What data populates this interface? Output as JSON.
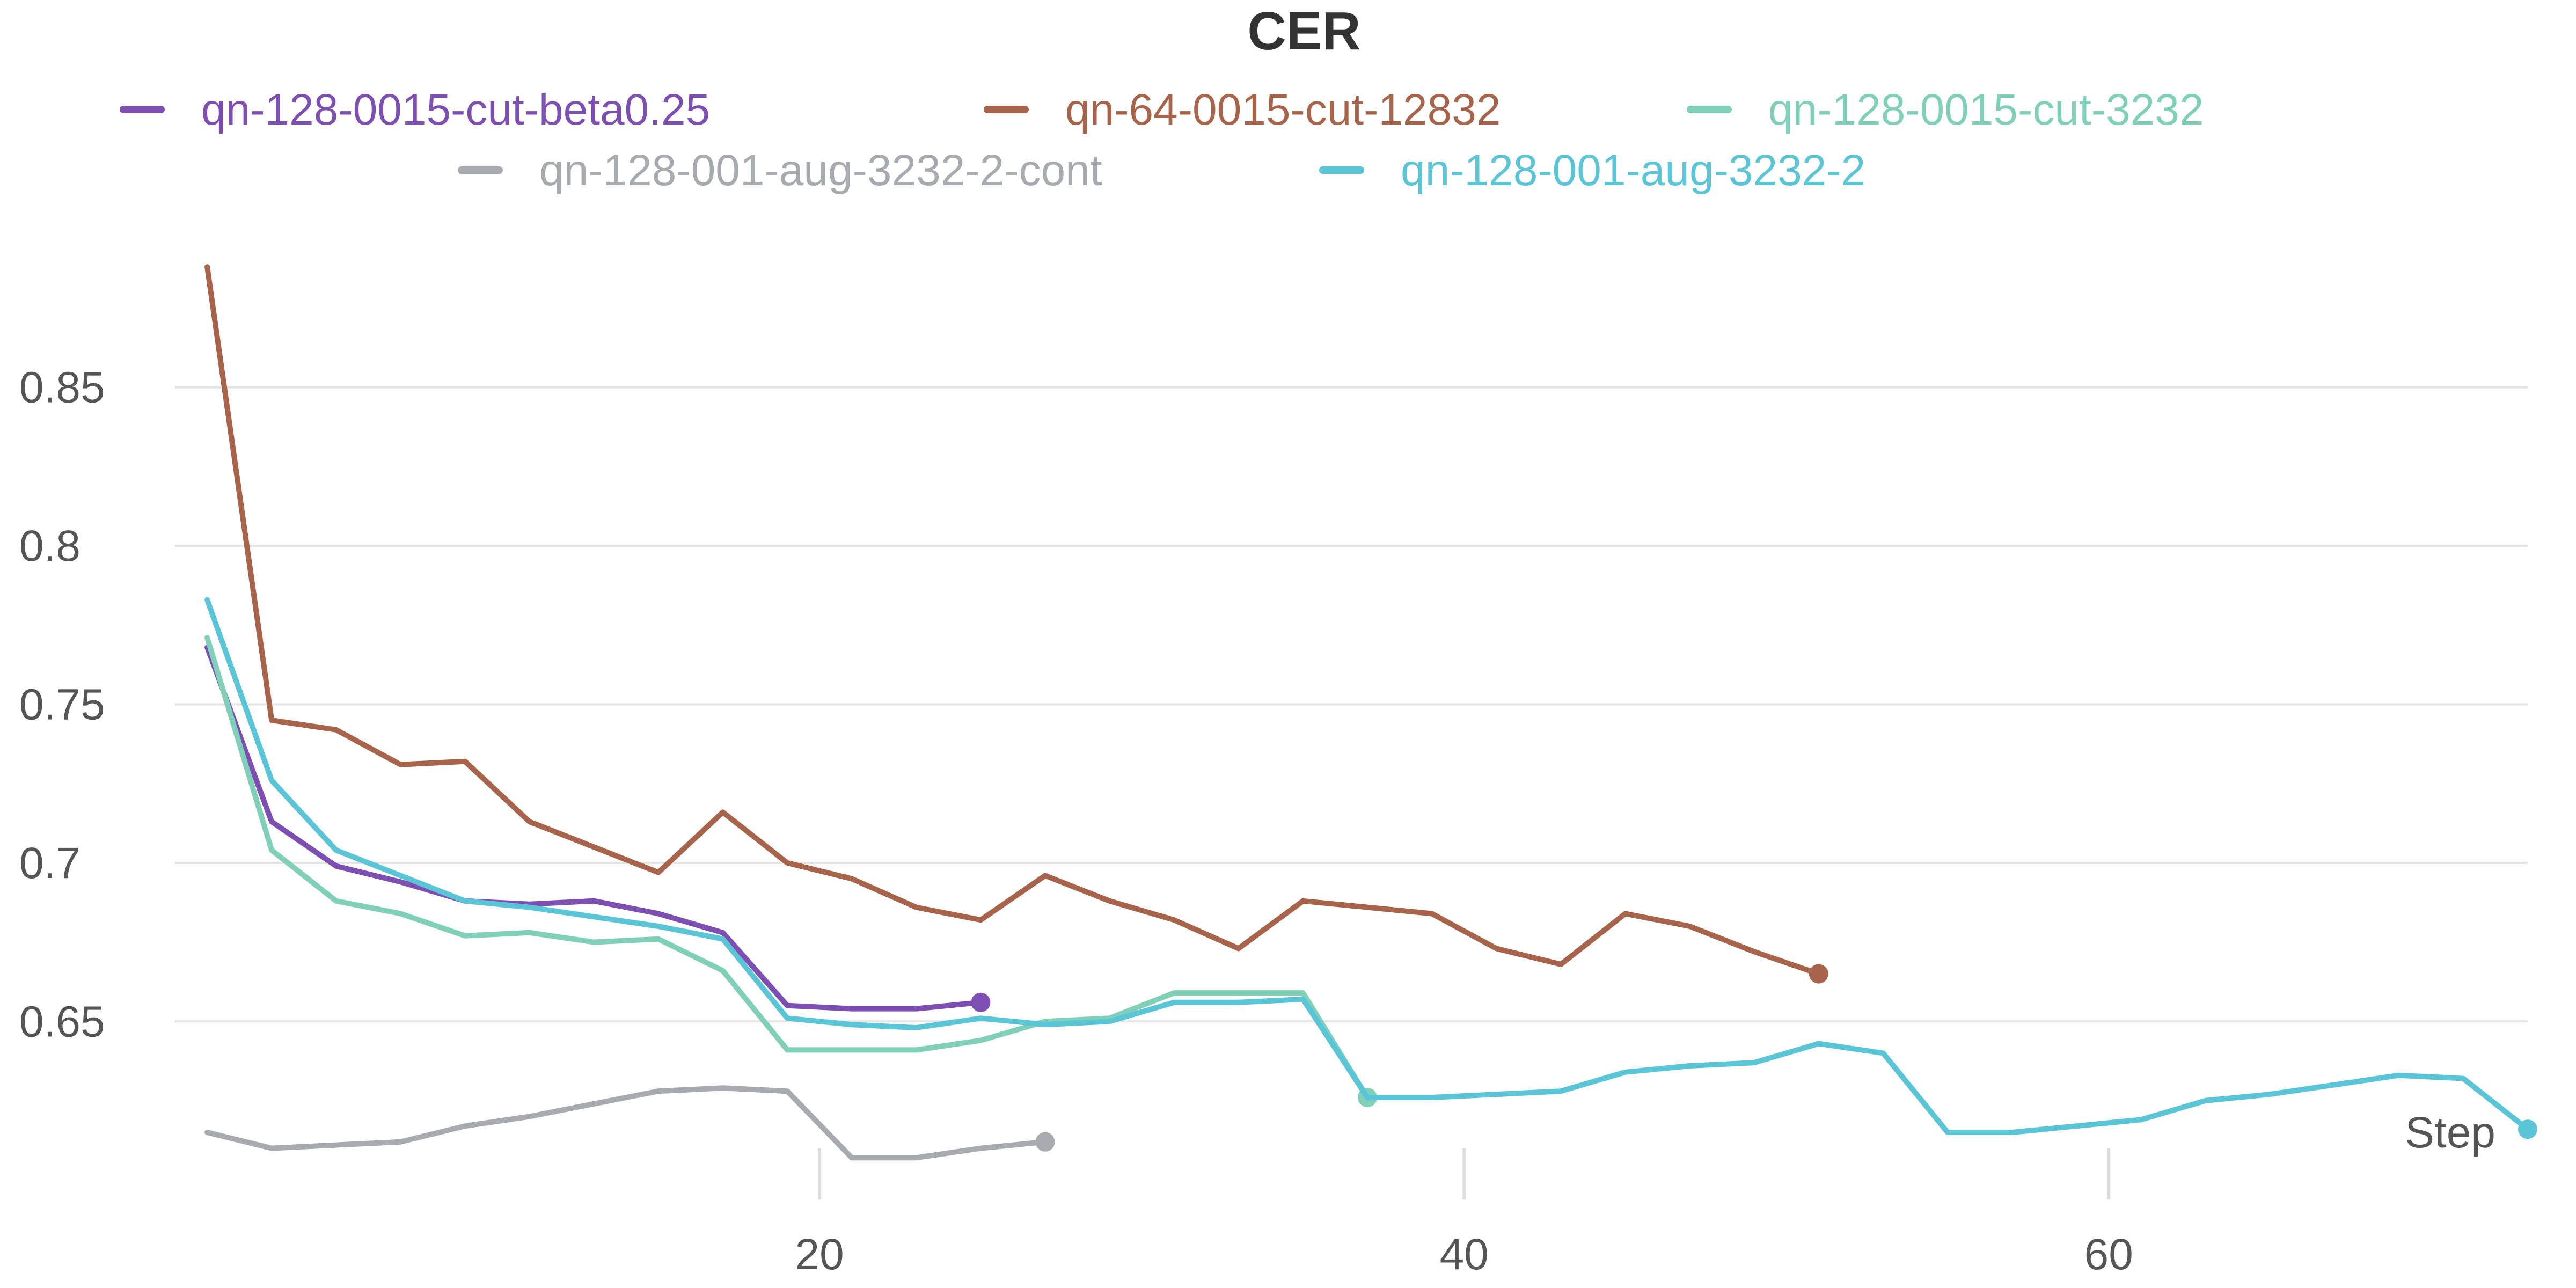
{
  "chart_data": {
    "type": "line",
    "title": "CER",
    "xlabel": "Step",
    "ylabel": "",
    "xlim": [
      0,
      73
    ],
    "ylim": [
      0.604,
      0.896
    ],
    "x_ticks": [
      20,
      40,
      60
    ],
    "y_ticks": [
      0.65,
      0.7,
      0.75,
      0.8,
      0.85
    ],
    "y_tick_labels": [
      "0.65",
      "0.7",
      "0.75",
      "0.8",
      "0.85"
    ],
    "grid": true,
    "legend_position": "top",
    "series": [
      {
        "name": "qn-128-0015-cut-beta0.25",
        "color": "#7e4fb3",
        "x": [
          1,
          3,
          5,
          7,
          9,
          11,
          13,
          15,
          17,
          19,
          21,
          23,
          25
        ],
        "y": [
          0.768,
          0.713,
          0.699,
          0.694,
          0.688,
          0.687,
          0.688,
          0.684,
          0.678,
          0.655,
          0.654,
          0.654,
          0.656
        ]
      },
      {
        "name": "qn-64-0015-cut-12832",
        "color": "#a8644a",
        "x": [
          1,
          3,
          5,
          7,
          9,
          11,
          13,
          15,
          17,
          19,
          21,
          23,
          25,
          27,
          29,
          31,
          33,
          35,
          37,
          39,
          41,
          43,
          45,
          47,
          49,
          51
        ],
        "y": [
          0.888,
          0.745,
          0.742,
          0.731,
          0.732,
          0.713,
          0.705,
          0.697,
          0.716,
          0.7,
          0.695,
          0.686,
          0.682,
          0.696,
          0.688,
          0.682,
          0.673,
          0.688,
          0.686,
          0.684,
          0.673,
          0.668,
          0.684,
          0.68,
          0.672,
          0.665
        ]
      },
      {
        "name": "qn-128-0015-cut-3232",
        "color": "#7fcfb9",
        "x": [
          1,
          3,
          5,
          7,
          9,
          11,
          13,
          15,
          17,
          19,
          21,
          23,
          25,
          27,
          29,
          31,
          33,
          35,
          37
        ],
        "y": [
          0.771,
          0.704,
          0.688,
          0.684,
          0.677,
          0.678,
          0.675,
          0.676,
          0.666,
          0.641,
          0.641,
          0.641,
          0.644,
          0.65,
          0.651,
          0.659,
          0.659,
          0.659,
          0.626
        ]
      },
      {
        "name": "qn-128-001-aug-3232-2-cont",
        "color": "#a7abaf",
        "x": [
          1,
          3,
          5,
          7,
          9,
          11,
          13,
          15,
          17,
          19,
          21,
          23,
          25,
          27
        ],
        "y": [
          0.615,
          0.61,
          0.611,
          0.612,
          0.617,
          0.62,
          0.624,
          0.628,
          0.629,
          0.628,
          0.607,
          0.607,
          0.61,
          0.612
        ]
      },
      {
        "name": "qn-128-001-aug-3232-2",
        "color": "#5bc5d8",
        "x": [
          1,
          3,
          5,
          7,
          9,
          11,
          13,
          15,
          17,
          19,
          21,
          23,
          25,
          27,
          29,
          31,
          33,
          35,
          37,
          39,
          41,
          43,
          45,
          47,
          49,
          51,
          53,
          55,
          57,
          59,
          61,
          63,
          65,
          67,
          69,
          71,
          73
        ],
        "y": [
          0.783,
          0.726,
          0.704,
          0.696,
          0.688,
          0.686,
          0.683,
          0.68,
          0.676,
          0.651,
          0.649,
          0.648,
          0.651,
          0.649,
          0.65,
          0.656,
          0.656,
          0.657,
          0.626,
          0.626,
          0.627,
          0.628,
          0.634,
          0.636,
          0.637,
          0.643,
          0.64,
          0.615,
          0.615,
          0.617,
          0.619,
          0.625,
          0.627,
          0.63,
          0.633,
          0.632,
          0.616
        ]
      }
    ]
  }
}
